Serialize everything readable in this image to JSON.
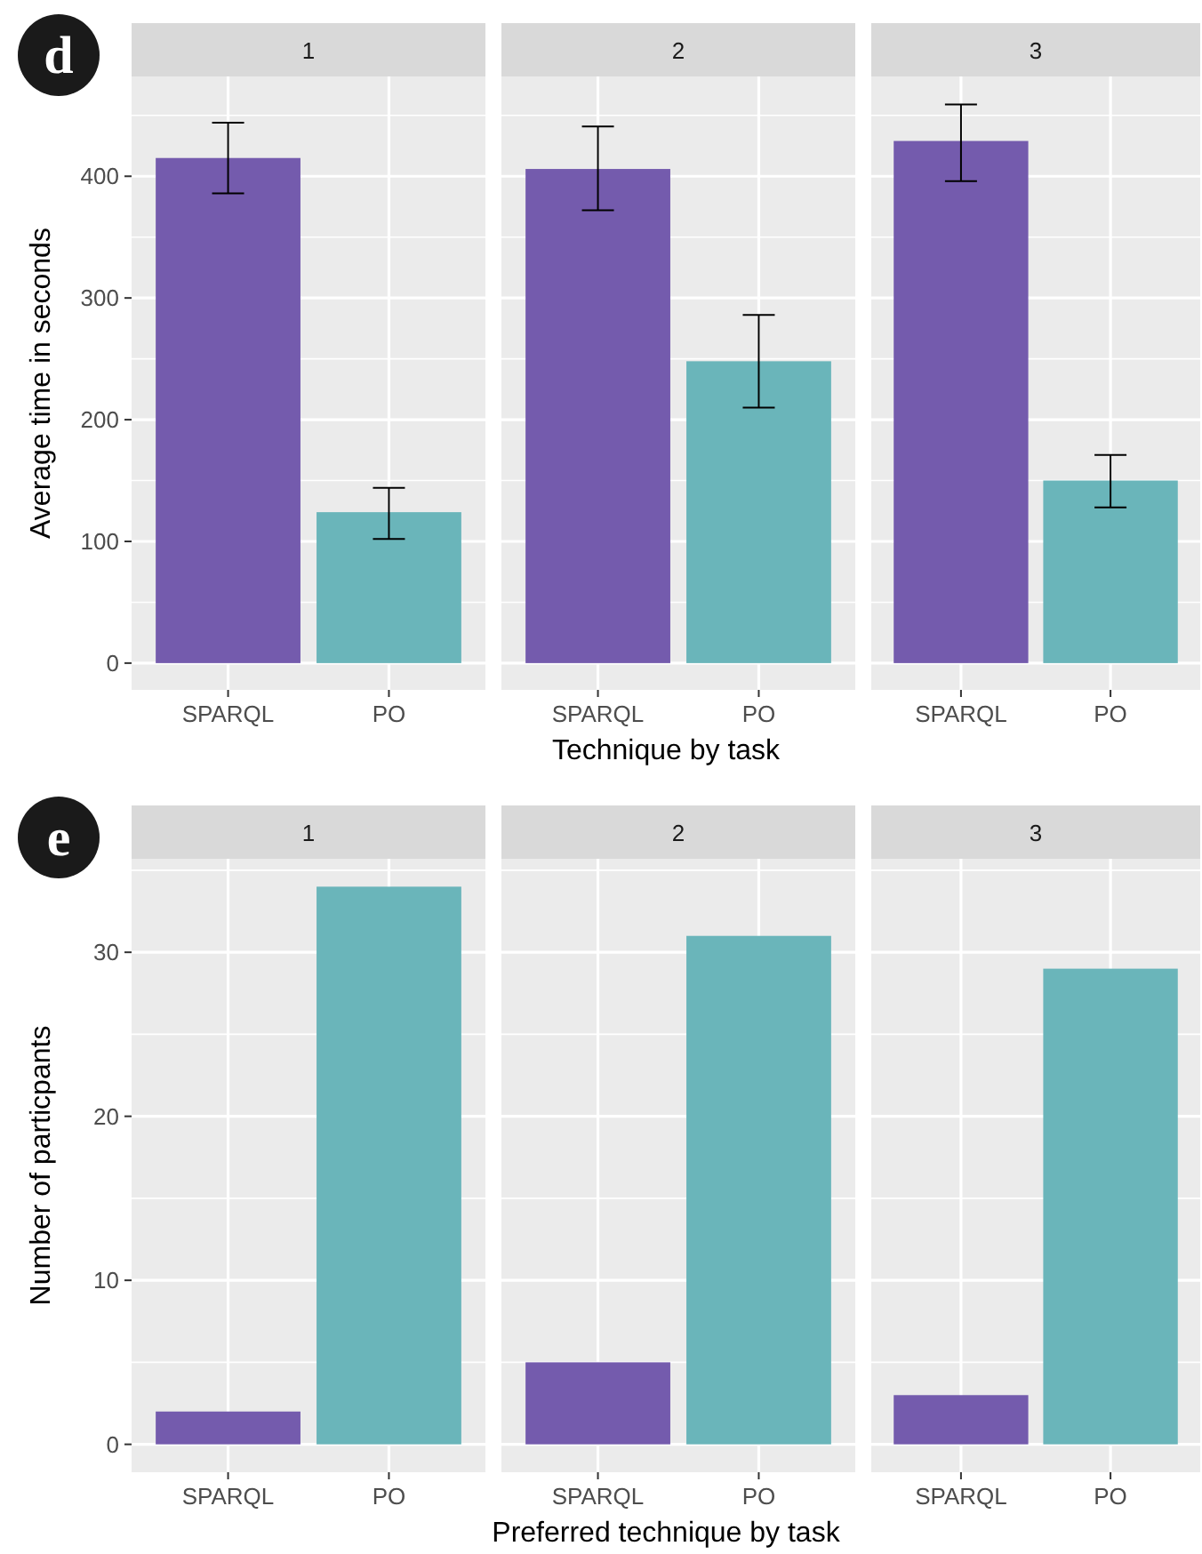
{
  "chart_data": [
    {
      "type": "bar",
      "title": "1",
      "ylabel": "Average time in seconds",
      "annotations": [
        "d"
      ],
      "categories": [
        "SPARQL",
        "PO"
      ],
      "values": [
        415,
        124
      ],
      "colors": [
        "#745bad",
        "#6ab5ba"
      ],
      "errors": [
        [
          386,
          444
        ],
        [
          102,
          144
        ]
      ],
      "ylim": [
        -22,
        482
      ],
      "yticks": [
        0,
        100,
        200,
        300,
        400
      ],
      "grid": true
    },
    {
      "type": "bar",
      "title": "2",
      "xlabel": "Technique by task",
      "categories": [
        "SPARQL",
        "PO"
      ],
      "values": [
        406,
        248
      ],
      "colors": [
        "#745bad",
        "#6ab5ba"
      ],
      "errors": [
        [
          372,
          441
        ],
        [
          210,
          286
        ]
      ],
      "ylim": [
        -22,
        482
      ],
      "yticks": [
        0,
        100,
        200,
        300,
        400
      ],
      "grid": true,
      "tick_labels": "x"
    },
    {
      "type": "bar",
      "title": "3",
      "categories": [
        "SPARQL",
        "PO"
      ],
      "values": [
        429,
        150
      ],
      "colors": [
        "#745bad",
        "#6ab5ba"
      ],
      "errors": [
        [
          396,
          459
        ],
        [
          128,
          171
        ]
      ],
      "ylim": [
        -22,
        482
      ],
      "yticks": [
        0,
        100,
        200,
        300,
        400
      ],
      "grid": true,
      "tick_labels": "x"
    },
    {
      "type": "bar",
      "title": "1",
      "ylabel": "Number of particpants",
      "annotations": [
        "e"
      ],
      "categories": [
        "SPARQL",
        "PO"
      ],
      "values": [
        2,
        34
      ],
      "colors": [
        "#745bad",
        "#6ab5ba"
      ],
      "ylim": [
        -1.7,
        35.7
      ],
      "yticks": [
        0,
        10,
        20,
        30
      ],
      "grid": true
    },
    {
      "type": "bar",
      "title": "2",
      "xlabel": "Preferred technique by task",
      "categories": [
        "SPARQL",
        "PO"
      ],
      "values": [
        5,
        31
      ],
      "colors": [
        "#745bad",
        "#6ab5ba"
      ],
      "ylim": [
        -1.7,
        35.7
      ],
      "yticks": [
        0,
        10,
        20,
        30
      ],
      "grid": true,
      "tick_labels": "x"
    },
    {
      "type": "bar",
      "title": "3",
      "categories": [
        "SPARQL",
        "PO"
      ],
      "values": [
        3,
        29
      ],
      "colors": [
        "#745bad",
        "#6ab5ba"
      ],
      "ylim": [
        -1.7,
        35.7
      ],
      "yticks": [
        0,
        10,
        20,
        30
      ],
      "grid": true,
      "tick_labels": "x"
    }
  ]
}
